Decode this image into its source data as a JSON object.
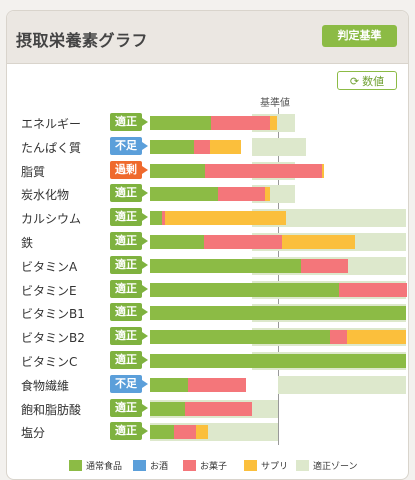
{
  "header": {
    "title": "摂取栄養素グラフ",
    "criteria_button": "判定基準"
  },
  "value_button": {
    "icon": "refresh-icon",
    "label": "数値"
  },
  "standard_label": "基準値",
  "colors": {
    "normal_food": "#8cbb45",
    "alcohol": "#5b9fda",
    "snack": "#f4767a",
    "supplement": "#fbbf3c",
    "optimal_zone": "#dde8cc",
    "status_ok": "#7fb23f",
    "status_low": "#5b9fda",
    "status_over": "#ef6a2d"
  },
  "status_labels": {
    "ok": "適正",
    "low": "不足",
    "over": "過剰"
  },
  "nutrients": [
    {
      "name": "エネルギー",
      "status": "ok",
      "status_label": "適正",
      "percent_of_standard": {
        "normal_food": 48,
        "alcohol": 0,
        "snack": 46,
        "supplement": 5
      },
      "optimal_zone_percent": [
        80,
        113
      ]
    },
    {
      "name": "たんぱく質",
      "status": "low",
      "status_label": "不足",
      "percent_of_standard": {
        "normal_food": 34,
        "alcohol": 0,
        "snack": 13,
        "supplement": 24
      },
      "optimal_zone_percent": [
        80,
        122
      ]
    },
    {
      "name": "脂質",
      "status": "over",
      "status_label": "過剰",
      "percent_of_standard": {
        "normal_food": 43,
        "alcohol": 0,
        "snack": 91,
        "supplement": 2
      },
      "optimal_zone_percent": [
        80,
        113
      ]
    },
    {
      "name": "炭水化物",
      "status": "ok",
      "status_label": "適正",
      "percent_of_standard": {
        "normal_food": 53,
        "alcohol": 0,
        "snack": 37,
        "supplement": 4
      },
      "optimal_zone_percent": [
        80,
        113
      ]
    },
    {
      "name": "カルシウム",
      "status": "ok",
      "status_label": "適正",
      "percent_of_standard": {
        "normal_food": 9,
        "alcohol": 0,
        "snack": 3,
        "supplement": 94
      },
      "optimal_zone_percent": [
        80,
        200
      ]
    },
    {
      "name": "鉄",
      "status": "ok",
      "status_label": "適正",
      "percent_of_standard": {
        "normal_food": 42,
        "alcohol": 0,
        "snack": 61,
        "supplement": 57
      },
      "optimal_zone_percent": [
        80,
        200
      ]
    },
    {
      "name": "ビタミンA",
      "status": "ok",
      "status_label": "適正",
      "percent_of_standard": {
        "normal_food": 118,
        "alcohol": 0,
        "snack": 37,
        "supplement": 0
      },
      "optimal_zone_percent": [
        80,
        200
      ]
    },
    {
      "name": "ビタミンE",
      "status": "ok",
      "status_label": "適正",
      "percent_of_standard": {
        "normal_food": 148,
        "alcohol": 0,
        "snack": 53,
        "supplement": 0
      },
      "optimal_zone_percent": [
        80,
        200
      ]
    },
    {
      "name": "ビタミンB1",
      "status": "ok",
      "status_label": "適正",
      "percent_of_standard": {
        "normal_food": 200,
        "alcohol": 0,
        "snack": 0,
        "supplement": 0
      },
      "optimal_zone_percent": [
        80,
        200
      ]
    },
    {
      "name": "ビタミンB2",
      "status": "ok",
      "status_label": "適正",
      "percent_of_standard": {
        "normal_food": 141,
        "alcohol": 0,
        "snack": 13,
        "supplement": 46
      },
      "optimal_zone_percent": [
        80,
        200
      ]
    },
    {
      "name": "ビタミンC",
      "status": "ok",
      "status_label": "適正",
      "percent_of_standard": {
        "normal_food": 200,
        "alcohol": 0,
        "snack": 0,
        "supplement": 0
      },
      "optimal_zone_percent": [
        80,
        200
      ]
    },
    {
      "name": "食物繊維",
      "status": "low",
      "status_label": "不足",
      "percent_of_standard": {
        "normal_food": 30,
        "alcohol": 0,
        "snack": 45,
        "supplement": 0
      },
      "optimal_zone_percent": [
        100,
        200
      ]
    },
    {
      "name": "飽和脂肪酸",
      "status": "ok",
      "status_label": "適正",
      "percent_of_standard": {
        "normal_food": 27,
        "alcohol": 0,
        "snack": 53,
        "supplement": 0
      },
      "optimal_zone_percent": [
        0,
        100
      ]
    },
    {
      "name": "塩分",
      "status": "ok",
      "status_label": "適正",
      "percent_of_standard": {
        "normal_food": 19,
        "alcohol": 0,
        "snack": 17,
        "supplement": 9
      },
      "optimal_zone_percent": [
        0,
        100
      ]
    }
  ],
  "legend": [
    {
      "key": "normal_food",
      "label": "通常食品"
    },
    {
      "key": "alcohol",
      "label": "お酒"
    },
    {
      "key": "snack",
      "label": "お菓子"
    },
    {
      "key": "supplement",
      "label": "サプリ"
    },
    {
      "key": "optimal_zone",
      "label": "適正ゾーン"
    }
  ]
}
